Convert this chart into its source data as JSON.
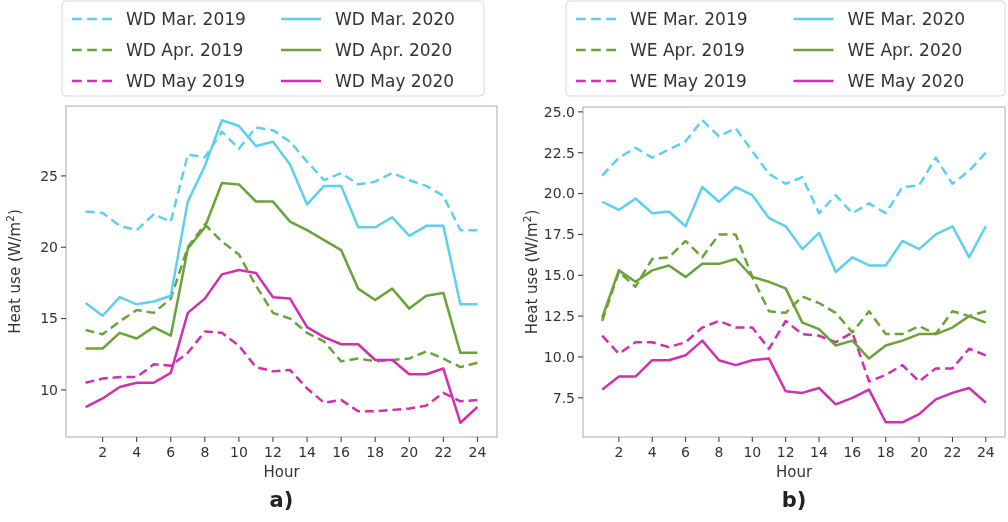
{
  "chart_data": [
    {
      "type": "line",
      "title": "a)",
      "xlabel": "Hour",
      "ylabel": "Heat use (W/m$^{2}$)",
      "legend": "top",
      "x": [
        1,
        2,
        3,
        4,
        5,
        6,
        7,
        8,
        9,
        10,
        11,
        12,
        13,
        14,
        15,
        16,
        17,
        18,
        19,
        20,
        21,
        22,
        23,
        24
      ],
      "xlim": [
        -0.15,
        25.15
      ],
      "xticks": [
        2,
        4,
        6,
        8,
        10,
        12,
        14,
        16,
        18,
        20,
        22,
        24
      ],
      "ylim": [
        6.7,
        29.9
      ],
      "yticks": [
        10,
        15,
        20,
        25
      ],
      "series": [
        {
          "name": "WD Mar. 2019",
          "color": "#5dd0ee",
          "line_style": "dashed",
          "values": [
            22.5,
            22.4,
            21.5,
            21.2,
            22.3,
            21.8,
            26.5,
            26.3,
            28.1,
            26.9,
            28.4,
            28.2,
            27.4,
            26.0,
            24.7,
            25.2,
            24.4,
            24.6,
            25.2,
            24.7,
            24.3,
            23.6,
            21.2,
            21.2
          ]
        },
        {
          "name": "WD Apr. 2019",
          "color": "#6aa339",
          "line_style": "dashed",
          "values": [
            14.2,
            13.9,
            14.8,
            15.6,
            15.4,
            16.4,
            20.0,
            21.6,
            20.4,
            19.5,
            17.3,
            15.4,
            15.0,
            14.0,
            13.4,
            12.0,
            12.2,
            12.0,
            12.1,
            12.2,
            12.7,
            12.2,
            11.6,
            11.9
          ]
        },
        {
          "name": "WD May 2019",
          "color": "#d02fae",
          "line_style": "dashed",
          "values": [
            10.5,
            10.8,
            10.9,
            10.9,
            11.8,
            11.7,
            12.6,
            14.1,
            14.0,
            13.1,
            11.6,
            11.3,
            11.4,
            10.1,
            9.1,
            9.3,
            8.5,
            8.5,
            8.6,
            8.7,
            8.9,
            9.8,
            9.2,
            9.3
          ]
        },
        {
          "name": "WD Mar. 2020",
          "color": "#5dd0ee",
          "line_style": "solid",
          "values": [
            16.1,
            15.2,
            16.5,
            16.0,
            16.2,
            16.6,
            23.2,
            25.7,
            28.9,
            28.5,
            27.1,
            27.4,
            25.8,
            23.0,
            24.3,
            24.3,
            21.4,
            21.4,
            22.1,
            20.8,
            21.5,
            21.5,
            16.0,
            16.0
          ]
        },
        {
          "name": "WD Apr. 2020",
          "color": "#6aa339",
          "line_style": "solid",
          "values": [
            12.9,
            12.9,
            14.0,
            13.6,
            14.4,
            13.8,
            19.9,
            21.4,
            24.5,
            24.4,
            23.2,
            23.2,
            21.8,
            21.2,
            20.5,
            19.8,
            17.1,
            16.3,
            17.1,
            15.7,
            16.6,
            16.8,
            12.6,
            12.6
          ]
        },
        {
          "name": "WD May 2020",
          "color": "#d02fae",
          "line_style": "solid",
          "values": [
            8.8,
            9.4,
            10.2,
            10.5,
            10.5,
            11.2,
            15.4,
            16.4,
            18.1,
            18.4,
            18.2,
            16.5,
            16.4,
            14.4,
            13.7,
            13.2,
            13.2,
            12.1,
            12.1,
            11.1,
            11.1,
            11.5,
            7.7,
            8.8
          ]
        }
      ]
    },
    {
      "type": "line",
      "title": "b)",
      "xlabel": "Hour",
      "ylabel": "Heat use (W/m$^{2}$)",
      "legend": "top",
      "x": [
        1,
        2,
        3,
        4,
        5,
        6,
        7,
        8,
        9,
        10,
        11,
        12,
        13,
        14,
        15,
        16,
        17,
        18,
        19,
        20,
        21,
        22,
        23,
        24
      ],
      "xlim": [
        -0.15,
        25.15
      ],
      "xticks": [
        2,
        4,
        6,
        8,
        10,
        12,
        14,
        16,
        18,
        20,
        22,
        24
      ],
      "ylim": [
        5.1,
        25.3
      ],
      "yticks": [
        7.5,
        {
          "value": 10,
          "label": "10.0"
        },
        12.5,
        {
          "value": 15,
          "label": "15.0"
        },
        17.5,
        {
          "value": 20,
          "label": "20.0"
        },
        22.5,
        {
          "value": 25,
          "label": "25.0"
        }
      ],
      "series": [
        {
          "name": "WE Mar. 2019",
          "color": "#5dd0ee",
          "line_style": "dashed",
          "values": [
            21.1,
            22.2,
            22.8,
            22.2,
            22.7,
            23.2,
            24.5,
            23.5,
            24.0,
            22.6,
            21.2,
            20.6,
            21.0,
            18.8,
            19.9,
            18.8,
            19.4,
            18.8,
            20.4,
            20.5,
            22.2,
            20.6,
            21.4,
            22.5
          ]
        },
        {
          "name": "WE Apr. 2019",
          "color": "#6aa339",
          "line_style": "dashed",
          "values": [
            12.2,
            15.2,
            14.3,
            16.0,
            16.1,
            17.1,
            16.1,
            17.5,
            17.5,
            14.9,
            12.8,
            12.7,
            13.7,
            13.3,
            12.7,
            11.5,
            12.8,
            11.4,
            11.4,
            11.9,
            11.4,
            12.8,
            12.5,
            12.8
          ]
        },
        {
          "name": "WE May 2019",
          "color": "#d02fae",
          "line_style": "dashed",
          "values": [
            11.3,
            10.2,
            10.9,
            10.9,
            10.6,
            10.9,
            11.8,
            12.2,
            11.8,
            11.8,
            10.5,
            12.2,
            11.4,
            11.3,
            10.9,
            11.5,
            8.5,
            8.9,
            9.5,
            8.5,
            9.3,
            9.3,
            10.5,
            10.1
          ]
        },
        {
          "name": "WE Mar. 2020",
          "color": "#5dd0ee",
          "line_style": "solid",
          "values": [
            19.5,
            19.0,
            19.7,
            18.8,
            18.9,
            18.0,
            20.4,
            19.5,
            20.4,
            19.9,
            18.5,
            18.0,
            16.6,
            17.6,
            15.2,
            16.1,
            15.6,
            15.6,
            17.1,
            16.6,
            17.5,
            18.0,
            16.1,
            18.0
          ]
        },
        {
          "name": "WE Apr. 2020",
          "color": "#6aa339",
          "line_style": "solid",
          "values": [
            12.4,
            15.3,
            14.6,
            15.3,
            15.6,
            14.9,
            15.7,
            15.7,
            16.0,
            14.9,
            14.6,
            14.2,
            12.1,
            11.7,
            10.7,
            11.0,
            9.9,
            10.7,
            11.0,
            11.4,
            11.4,
            11.8,
            12.5,
            12.1
          ]
        },
        {
          "name": "WE May 2020",
          "color": "#d02fae",
          "line_style": "solid",
          "values": [
            8.0,
            8.8,
            8.8,
            9.8,
            9.8,
            10.1,
            11.0,
            9.8,
            9.5,
            9.8,
            9.9,
            7.9,
            7.8,
            8.1,
            7.1,
            7.5,
            8.0,
            6.0,
            6.0,
            6.5,
            7.4,
            7.8,
            8.1,
            7.2
          ]
        }
      ]
    }
  ]
}
